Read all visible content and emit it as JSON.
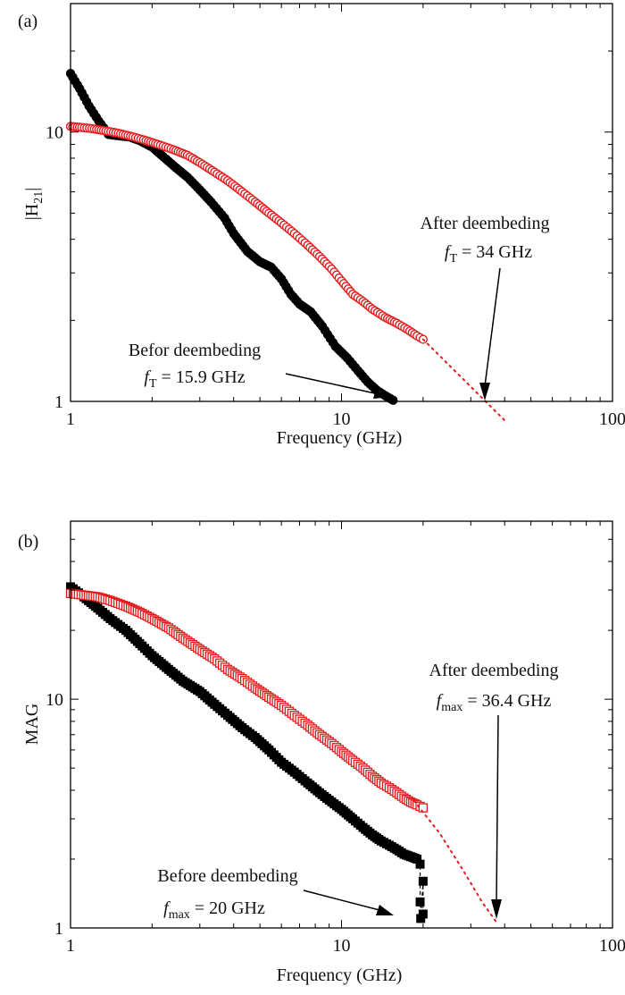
{
  "chart_data": [
    {
      "type": "scatter",
      "panel_label": "(a)",
      "xlabel": "Frequency (GHz)",
      "ylabel_main": "|H",
      "ylabel_sub": "21",
      "ylabel_end": "|",
      "x_scale": "log",
      "y_scale": "log",
      "xlim": [
        1,
        100
      ],
      "ylim": [
        1,
        30
      ],
      "x_ticks": [
        {
          "v": 1,
          "label": "1"
        },
        {
          "v": 10,
          "label": "10"
        },
        {
          "v": 100,
          "label": "100"
        }
      ],
      "y_ticks": [
        {
          "v": 1,
          "label": "1"
        },
        {
          "v": 10,
          "label": "10"
        }
      ],
      "grid": false,
      "series": [
        {
          "role": "before",
          "marker": "filled-circle",
          "color": "#000000",
          "points": [
            [
              1,
              16.5
            ],
            [
              1.08,
              14.5
            ],
            [
              1.17,
              12.5
            ],
            [
              1.27,
              11
            ],
            [
              1.38,
              9.8
            ],
            [
              1.5,
              9.7
            ],
            [
              1.65,
              9.6
            ],
            [
              1.8,
              9.3
            ],
            [
              2,
              8.8
            ],
            [
              2.2,
              8.1
            ],
            [
              2.4,
              7.5
            ],
            [
              2.7,
              6.8
            ],
            [
              3,
              6.1
            ],
            [
              3.3,
              5.5
            ],
            [
              3.7,
              4.8
            ],
            [
              4,
              4.2
            ],
            [
              4.5,
              3.6
            ],
            [
              5,
              3.3
            ],
            [
              5.5,
              3.15
            ],
            [
              6,
              2.85
            ],
            [
              6.5,
              2.5
            ],
            [
              7,
              2.3
            ],
            [
              7.7,
              2.15
            ],
            [
              8.5,
              1.9
            ],
            [
              9.5,
              1.6
            ],
            [
              10.5,
              1.45
            ],
            [
              11.5,
              1.3
            ],
            [
              12.5,
              1.18
            ],
            [
              13.5,
              1.1
            ],
            [
              14.5,
              1.05
            ],
            [
              15.5,
              1.01
            ]
          ]
        },
        {
          "role": "after",
          "marker": "open-circle",
          "color": "#e41a1c",
          "points": [
            [
              1,
              10.5
            ],
            [
              1.1,
              10.4
            ],
            [
              1.2,
              10.3
            ],
            [
              1.35,
              10.1
            ],
            [
              1.5,
              9.9
            ],
            [
              1.7,
              9.6
            ],
            [
              1.9,
              9.3
            ],
            [
              2.1,
              9.0
            ],
            [
              2.4,
              8.6
            ],
            [
              2.7,
              8.2
            ],
            [
              3,
              7.7
            ],
            [
              3.4,
              7.1
            ],
            [
              3.8,
              6.6
            ],
            [
              4.3,
              6.0
            ],
            [
              4.8,
              5.5
            ],
            [
              5.4,
              5.0
            ],
            [
              6,
              4.6
            ],
            [
              6.7,
              4.2
            ],
            [
              7.5,
              3.8
            ],
            [
              8.3,
              3.45
            ],
            [
              9.2,
              3.1
            ],
            [
              10,
              2.8
            ],
            [
              11,
              2.5
            ],
            [
              12,
              2.35
            ],
            [
              13,
              2.2
            ],
            [
              14.5,
              2.05
            ],
            [
              16,
              1.95
            ],
            [
              17.5,
              1.85
            ],
            [
              19,
              1.75
            ],
            [
              20,
              1.7
            ]
          ]
        },
        {
          "role": "extrapolation",
          "style": "dotted-line",
          "color": "#e41a1c",
          "points": [
            [
              20,
              1.7
            ],
            [
              40,
              0.85
            ]
          ]
        }
      ],
      "annotations": [
        {
          "lines": [
            "After deembeding",
            "f_T = 34 GHz"
          ],
          "sub": "T",
          "value": "= 34 GHz",
          "arrow_to": [
            34,
            1
          ]
        },
        {
          "lines": [
            "Befor deembeding",
            "f_T = 15.9 GHz"
          ],
          "sub": "T",
          "value": "= 15.9 GHz",
          "arrow_to": [
            15.9,
            1
          ]
        }
      ]
    },
    {
      "type": "scatter",
      "panel_label": "(b)",
      "xlabel": "Frequency (GHz)",
      "ylabel_main": "MAG",
      "x_scale": "log",
      "y_scale": "log",
      "xlim": [
        1,
        100
      ],
      "ylim": [
        1,
        60
      ],
      "x_ticks": [
        {
          "v": 1,
          "label": "1"
        },
        {
          "v": 10,
          "label": "10"
        },
        {
          "v": 100,
          "label": "100"
        }
      ],
      "y_ticks": [
        {
          "v": 1,
          "label": "1"
        },
        {
          "v": 10,
          "label": "10"
        }
      ],
      "grid": false,
      "series": [
        {
          "role": "before",
          "marker": "filled-square",
          "color": "#000000",
          "points": [
            [
              1,
              31
            ],
            [
              1.12,
              28
            ],
            [
              1.26,
              25
            ],
            [
              1.4,
              22.5
            ],
            [
              1.6,
              20
            ],
            [
              1.8,
              17.5
            ],
            [
              2,
              15.5
            ],
            [
              2.3,
              13.5
            ],
            [
              2.6,
              12
            ],
            [
              3,
              10.8
            ],
            [
              3.4,
              9.5
            ],
            [
              3.8,
              8.5
            ],
            [
              4.3,
              7.5
            ],
            [
              4.8,
              6.8
            ],
            [
              5.4,
              6
            ],
            [
              6,
              5.3
            ],
            [
              6.7,
              4.8
            ],
            [
              7.5,
              4.3
            ],
            [
              8.3,
              3.9
            ],
            [
              9.2,
              3.55
            ],
            [
              10,
              3.3
            ],
            [
              11,
              3.0
            ],
            [
              12,
              2.75
            ],
            [
              13,
              2.55
            ],
            [
              14,
              2.4
            ],
            [
              15,
              2.3
            ],
            [
              16,
              2.2
            ],
            [
              17,
              2.1
            ],
            [
              18,
              2.05
            ],
            [
              19,
              2.0
            ],
            [
              19.5,
              1.9
            ],
            [
              19.5,
              1.3
            ],
            [
              19.6,
              1.1
            ],
            [
              20,
              1.6
            ],
            [
              20,
              1.15
            ]
          ]
        },
        {
          "role": "after",
          "marker": "open-square",
          "color": "#e41a1c",
          "points": [
            [
              1,
              29
            ],
            [
              1.12,
              28.5
            ],
            [
              1.26,
              28
            ],
            [
              1.4,
              27
            ],
            [
              1.6,
              25.5
            ],
            [
              1.8,
              24
            ],
            [
              2,
              22.5
            ],
            [
              2.3,
              20.5
            ],
            [
              2.6,
              18.5
            ],
            [
              3,
              16.5
            ],
            [
              3.4,
              15
            ],
            [
              3.8,
              13.5
            ],
            [
              4.3,
              12.3
            ],
            [
              4.8,
              11.2
            ],
            [
              5.4,
              10.2
            ],
            [
              6,
              9.4
            ],
            [
              6.7,
              8.5
            ],
            [
              7.5,
              7.7
            ],
            [
              8.3,
              7.0
            ],
            [
              9.2,
              6.4
            ],
            [
              10,
              5.9
            ],
            [
              11,
              5.4
            ],
            [
              12,
              5.0
            ],
            [
              13,
              4.6
            ],
            [
              14,
              4.3
            ],
            [
              15,
              4.1
            ],
            [
              16,
              3.9
            ],
            [
              17,
              3.7
            ],
            [
              18,
              3.55
            ],
            [
              19,
              3.45
            ],
            [
              20,
              3.35
            ]
          ]
        },
        {
          "role": "extrapolation",
          "style": "dotted-line",
          "color": "#e41a1c",
          "points": [
            [
              18.5,
              3.6
            ],
            [
              23,
              2.6
            ],
            [
              28,
              1.8
            ],
            [
              33,
              1.3
            ],
            [
              37.5,
              1.05
            ]
          ]
        }
      ],
      "annotations": [
        {
          "lines": [
            "After deembeding",
            "f_max = 36.4 GHz"
          ],
          "sub": "max",
          "value": "= 36.4 GHz",
          "arrow_to": [
            36.4,
            1
          ]
        },
        {
          "lines": [
            "Before deembeding",
            "f_max = 20 GHz"
          ],
          "sub": "max",
          "value": "= 20 GHz",
          "arrow_to": [
            18.5,
            1.05
          ]
        }
      ]
    }
  ]
}
